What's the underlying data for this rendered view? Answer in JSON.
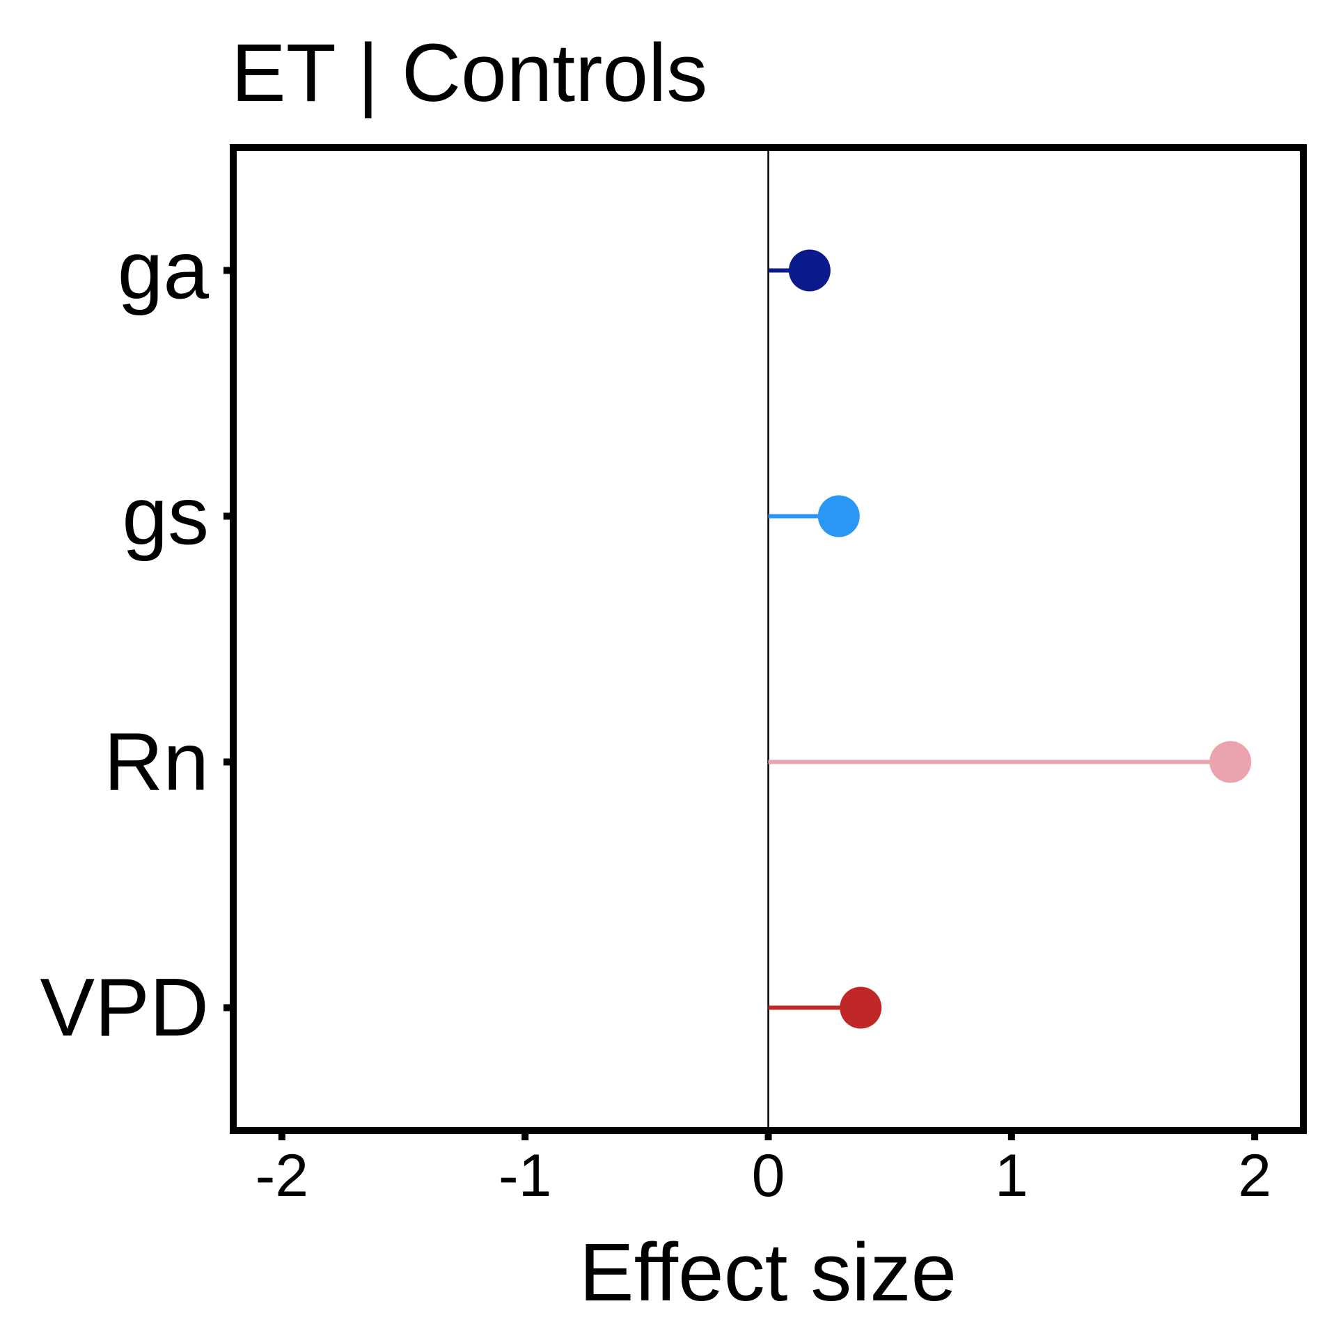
{
  "chart_data": {
    "type": "lollipop",
    "title": "ET | Controls",
    "xlabel": "Effect size",
    "ylabel": "",
    "xlim": [
      -2.2,
      2.2
    ],
    "x_ticks": [
      -2,
      -1,
      0,
      1,
      2
    ],
    "x_tick_labels": [
      "-2",
      "-1",
      "0",
      "1",
      "2"
    ],
    "reference_line": 0,
    "grid": false,
    "categories": [
      "ga",
      "gs",
      "Rn",
      "VPD"
    ],
    "values": [
      0.17,
      0.29,
      1.9,
      0.38
    ],
    "colors": [
      "#0A1A8A",
      "#2A97F5",
      "#EBA4AE",
      "#C02828"
    ]
  }
}
